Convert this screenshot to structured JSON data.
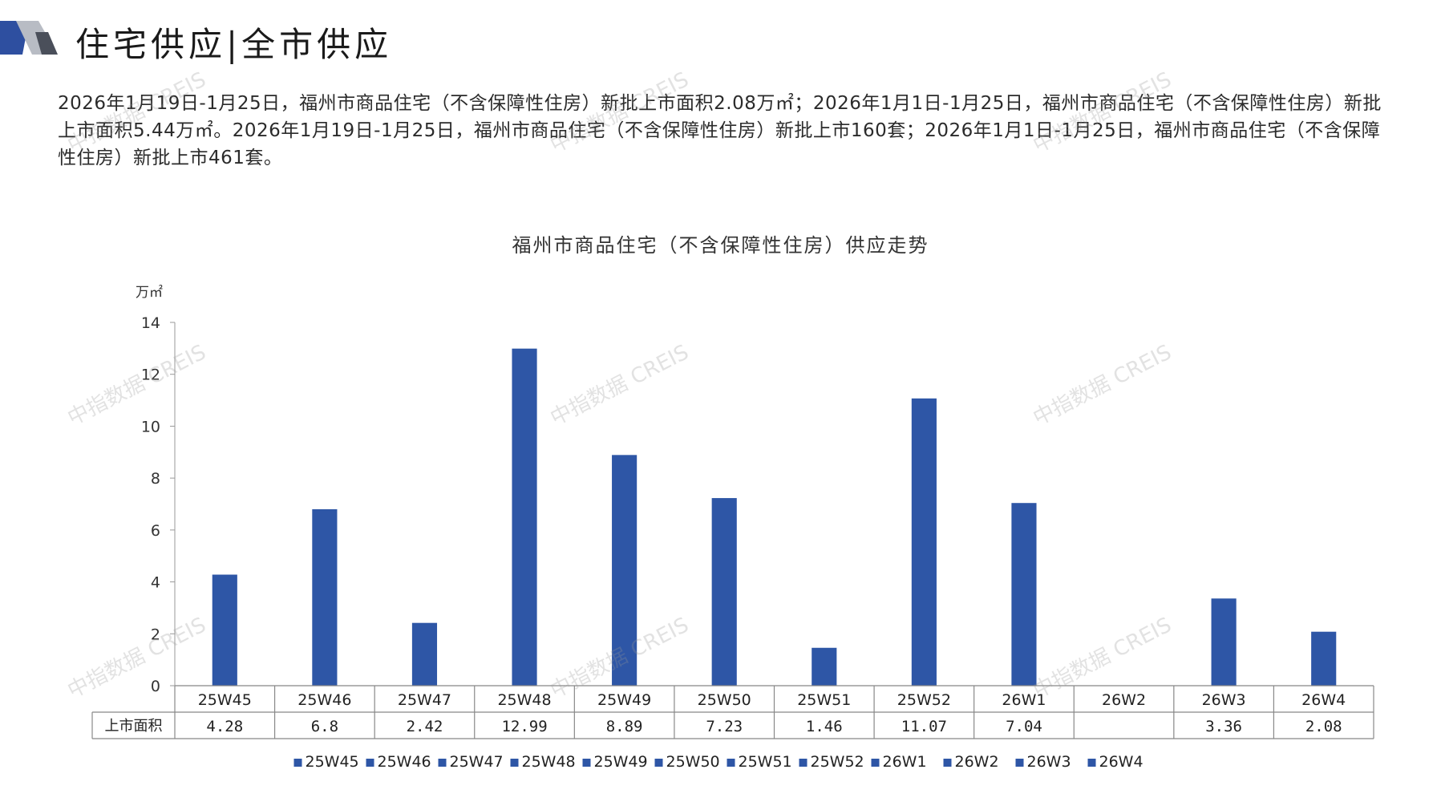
{
  "header": {
    "title": "住宅供应|全市供应"
  },
  "summary": {
    "text": "2026年1月19日-1月25日，福州市商品住宅（不含保障性住房）新批上市面积2.08万㎡；2026年1月1日-1月25日，福州市商品住宅（不含保障性住房）新批上市面积5.44万㎡。2026年1月19日-1月25日，福州市商品住宅（不含保障性住房）新批上市160套；2026年1月1日-1月25日，福州市商品住宅（不含保障性住房）新批上市461套。"
  },
  "watermark": "中指数据 CREIS",
  "colors": {
    "bar": "#2e56a6",
    "deco_dark": "#2e4fa0",
    "deco_gray": "#b8bcc4"
  },
  "chart_data": {
    "type": "bar",
    "title": "福州市商品住宅（不含保障性住房）供应走势",
    "ylabel": "万㎡",
    "ylim": [
      0,
      14
    ],
    "yticks": [
      0,
      2,
      4,
      6,
      8,
      10,
      12,
      14
    ],
    "categories": [
      "25W45",
      "25W46",
      "25W47",
      "25W48",
      "25W49",
      "25W50",
      "25W51",
      "25W52",
      "26W1",
      "26W2",
      "26W3",
      "26W4"
    ],
    "series": [
      {
        "name": "上市面积",
        "values": [
          4.28,
          6.8,
          2.42,
          12.99,
          8.89,
          7.23,
          1.46,
          11.07,
          7.04,
          null,
          3.36,
          2.08
        ]
      }
    ],
    "table_labels": [
      "4.28",
      "6.8",
      "2.42",
      "12.99",
      "8.89",
      "7.23",
      "1.46",
      "11.07",
      "7.04",
      "",
      "3.36",
      "2.08"
    ],
    "legend": [
      "25W45",
      "25W46",
      "25W47",
      "25W48",
      "25W49",
      "25W50",
      "25W51",
      "25W52",
      "26W1",
      "26W2",
      "26W3",
      "26W4"
    ],
    "legend_placement": "bottom",
    "grid": false
  }
}
